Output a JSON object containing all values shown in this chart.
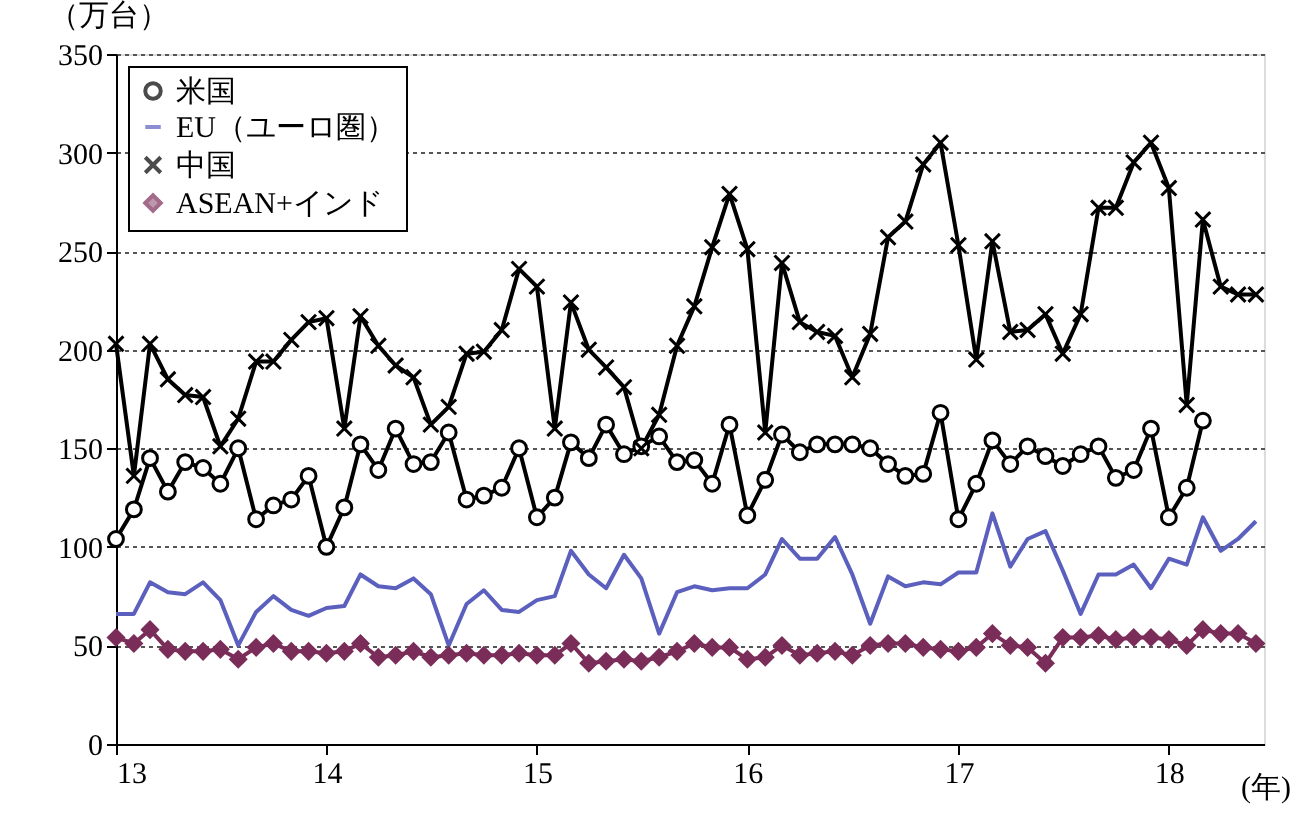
{
  "chart_data": {
    "type": "line",
    "ylabel": "（万台）",
    "xlabel": "(年)",
    "x": [
      "2013-01",
      "2013-02",
      "2013-03",
      "2013-04",
      "2013-05",
      "2013-06",
      "2013-07",
      "2013-08",
      "2013-09",
      "2013-10",
      "2013-11",
      "2013-12",
      "2014-01",
      "2014-02",
      "2014-03",
      "2014-04",
      "2014-05",
      "2014-06",
      "2014-07",
      "2014-08",
      "2014-09",
      "2014-10",
      "2014-11",
      "2014-12",
      "2015-01",
      "2015-02",
      "2015-03",
      "2015-04",
      "2015-05",
      "2015-06",
      "2015-07",
      "2015-08",
      "2015-09",
      "2015-10",
      "2015-11",
      "2015-12",
      "2016-01",
      "2016-02",
      "2016-03",
      "2016-04",
      "2016-05",
      "2016-06",
      "2016-07",
      "2016-08",
      "2016-09",
      "2016-10",
      "2016-11",
      "2016-12",
      "2017-01",
      "2017-02",
      "2017-03",
      "2017-04",
      "2017-05",
      "2017-06",
      "2017-07",
      "2017-08",
      "2017-09",
      "2017-10",
      "2017-11",
      "2017-12",
      "2018-01",
      "2018-02",
      "2018-03",
      "2018-04",
      "2018-05",
      "2018-06"
    ],
    "series": [
      {
        "name": "米国",
        "color": "#000000",
        "marker": "circle",
        "values": [
          104,
          119,
          145,
          128,
          143,
          140,
          132,
          150,
          114,
          121,
          124,
          136,
          100,
          120,
          152,
          139,
          160,
          142,
          143,
          158,
          124,
          126,
          130,
          150,
          115,
          125,
          153,
          145,
          162,
          147,
          151,
          156,
          143,
          144,
          132,
          162,
          116,
          134,
          157,
          148,
          152,
          152,
          152,
          150,
          142,
          136,
          137,
          168,
          114,
          132,
          154,
          142,
          151,
          146,
          141,
          147,
          151,
          135,
          139,
          160,
          115,
          130,
          164,
          null,
          null,
          null
        ]
      },
      {
        "name": "EU（ユーロ圏）",
        "color": "#5b5fbd",
        "marker": "none",
        "values": [
          66,
          66,
          82,
          77,
          76,
          82,
          73,
          50,
          67,
          75,
          68,
          65,
          69,
          70,
          86,
          80,
          79,
          84,
          76,
          50,
          71,
          78,
          68,
          67,
          73,
          75,
          98,
          86,
          79,
          96,
          84,
          56,
          77,
          80,
          78,
          79,
          79,
          86,
          104,
          94,
          94,
          105,
          86,
          61,
          85,
          80,
          82,
          81,
          87,
          87,
          117,
          90,
          104,
          108,
          88,
          66,
          86,
          86,
          91,
          79,
          94,
          91,
          115,
          98,
          104,
          113
        ]
      },
      {
        "name": "中国",
        "color": "#000000",
        "marker": "cross",
        "values": [
          203,
          136,
          203,
          185,
          177,
          176,
          151,
          165,
          194,
          194,
          205,
          214,
          216,
          160,
          217,
          202,
          192,
          186,
          162,
          171,
          198,
          199,
          210,
          241,
          232,
          160,
          224,
          200,
          191,
          181,
          150,
          167,
          202,
          222,
          252,
          279,
          251,
          158,
          244,
          214,
          209,
          207,
          186,
          208,
          257,
          265,
          294,
          305,
          253,
          195,
          255,
          209,
          210,
          218,
          198,
          218,
          272,
          272,
          295,
          305,
          282,
          172,
          266,
          232,
          228,
          228
        ]
      },
      {
        "name": "ASEAN+インド",
        "color": "#7b2d5a",
        "marker": "diamond",
        "values": [
          54,
          51,
          58,
          48,
          47,
          47,
          48,
          43,
          49,
          51,
          47,
          47,
          46,
          47,
          51,
          44,
          45,
          47,
          44,
          45,
          46,
          45,
          45,
          46,
          45,
          45,
          51,
          41,
          42,
          43,
          42,
          44,
          47,
          51,
          49,
          49,
          43,
          44,
          50,
          45,
          46,
          47,
          45,
          50,
          51,
          51,
          49,
          48,
          47,
          49,
          56,
          50,
          49,
          41,
          54,
          54,
          55,
          53,
          54,
          54,
          53,
          50,
          58,
          56,
          56,
          51
        ]
      }
    ],
    "xlim": [
      "2013-01",
      "2018-06-15"
    ],
    "xticks": [
      {
        "value": "2013-01",
        "label": "13"
      },
      {
        "value": "2014-01",
        "label": "14"
      },
      {
        "value": "2015-01",
        "label": "15"
      },
      {
        "value": "2016-01",
        "label": "16"
      },
      {
        "value": "2017-01",
        "label": "17"
      },
      {
        "value": "2018-01",
        "label": "18"
      }
    ],
    "ylim": [
      0,
      350
    ],
    "yticks": [
      0,
      50,
      100,
      150,
      200,
      250,
      300,
      350
    ],
    "grid": "y",
    "legend": "top left",
    "line_style": "solid"
  }
}
